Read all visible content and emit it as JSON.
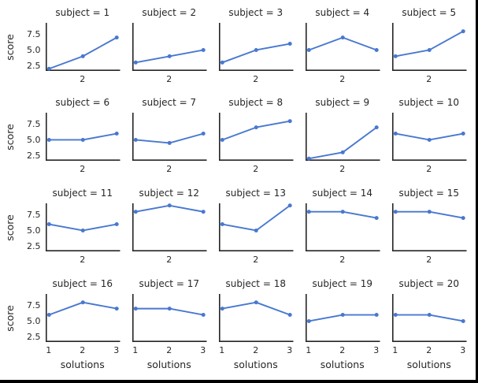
{
  "figure": {
    "background": "#ffffff",
    "edge_border_color": "#000000"
  },
  "chart_data": {
    "type": "line",
    "xlabel": "solutions",
    "ylabel": "score",
    "x": [
      1,
      2,
      3
    ],
    "xlim": [
      0.9,
      3.1
    ],
    "ylim": [
      1.65,
      9.35
    ],
    "xticks": [
      "1",
      "2",
      "3"
    ],
    "xtick_values": [
      1,
      2,
      3
    ],
    "xticks_inner": [
      "2"
    ],
    "xtick_inner_values": [
      2
    ],
    "yticks": [
      "2.5",
      "5.0",
      "7.5"
    ],
    "ytick_values": [
      2.5,
      5.0,
      7.5
    ],
    "col_wrap": 5,
    "grid": false,
    "legend": "none",
    "line_color": "#4878d0",
    "marker_color": "#4878d0",
    "spine_color": "#262626",
    "text_color": "#262626",
    "facets": [
      {
        "title": "subject = 1",
        "scores": [
          2,
          4,
          7
        ]
      },
      {
        "title": "subject = 2",
        "scores": [
          3,
          4,
          5
        ]
      },
      {
        "title": "subject = 3",
        "scores": [
          3,
          5,
          6
        ]
      },
      {
        "title": "subject = 4",
        "scores": [
          5,
          7,
          5
        ]
      },
      {
        "title": "subject = 5",
        "scores": [
          4,
          5,
          8
        ]
      },
      {
        "title": "subject = 6",
        "scores": [
          5,
          5,
          6
        ]
      },
      {
        "title": "subject = 7",
        "scores": [
          5,
          4.5,
          6
        ]
      },
      {
        "title": "subject = 8",
        "scores": [
          5,
          7,
          8
        ]
      },
      {
        "title": "subject = 9",
        "scores": [
          2,
          3,
          7
        ]
      },
      {
        "title": "subject = 10",
        "scores": [
          6,
          5,
          6
        ]
      },
      {
        "title": "subject = 11",
        "scores": [
          6,
          5,
          6
        ]
      },
      {
        "title": "subject = 12",
        "scores": [
          8,
          9,
          8
        ]
      },
      {
        "title": "subject = 13",
        "scores": [
          6,
          5,
          9
        ]
      },
      {
        "title": "subject = 14",
        "scores": [
          8,
          8,
          7
        ]
      },
      {
        "title": "subject = 15",
        "scores": [
          8,
          8,
          7
        ]
      },
      {
        "title": "subject = 16",
        "scores": [
          6,
          8,
          7
        ]
      },
      {
        "title": "subject = 17",
        "scores": [
          7,
          7,
          6
        ]
      },
      {
        "title": "subject = 18",
        "scores": [
          7,
          8,
          6
        ]
      },
      {
        "title": "subject = 19",
        "scores": [
          5,
          6,
          6
        ]
      },
      {
        "title": "subject = 20",
        "scores": [
          6,
          6,
          5
        ]
      }
    ]
  }
}
